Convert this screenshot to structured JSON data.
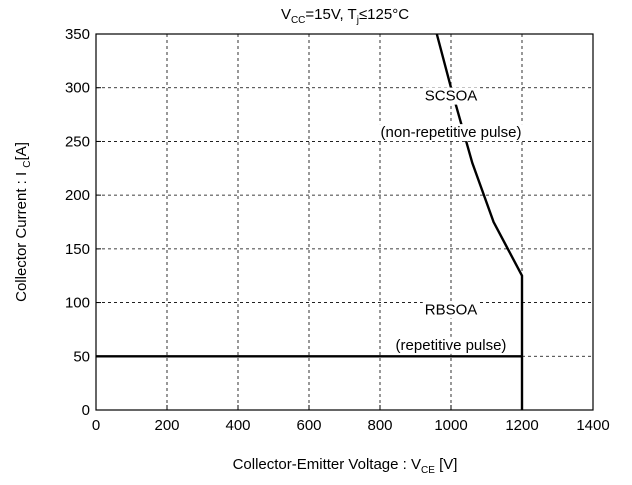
{
  "chart_data": {
    "type": "line",
    "title": "VCC=15V, Tj≤125°C",
    "title_parts": {
      "v": "V",
      "v_sub": "CC",
      "eq": "=15V, T",
      "t_sub": "j",
      "rest": "≤125°C"
    },
    "xlabel": "Collector-Emitter Voltage  : VCE  [V]",
    "xlabel_parts": {
      "main": "Collector-Emitter Voltage  : V",
      "sub": "CE",
      "unit": " [V]"
    },
    "ylabel": "Collector Current :  I  C[A]",
    "ylabel_parts": {
      "main": "Collector Current :  I  ",
      "sub": "C",
      "unit": "[A]"
    },
    "xlim": [
      0,
      1400
    ],
    "ylim": [
      0,
      350
    ],
    "x_ticks": [
      0,
      200,
      400,
      600,
      800,
      1000,
      1200,
      1400
    ],
    "y_ticks": [
      0,
      50,
      100,
      150,
      200,
      250,
      300,
      350
    ],
    "grid": true,
    "series": [
      {
        "x": [
          960,
          1000,
          1060,
          1120,
          1200,
          1200
        ],
        "y": [
          350,
          300,
          230,
          175,
          125,
          0
        ]
      },
      {
        "x": [
          0,
          1200
        ],
        "y": [
          50,
          50
        ]
      }
    ],
    "annotations": [
      {
        "text": "SCSOA",
        "x": 1000,
        "y": 288
      },
      {
        "text": "(non-repetitive pulse)",
        "x": 1000,
        "y": 254
      },
      {
        "text": "RBSOA",
        "x": 1000,
        "y": 89
      },
      {
        "text": "(repetitive pulse)",
        "x": 1000,
        "y": 56
      }
    ]
  }
}
